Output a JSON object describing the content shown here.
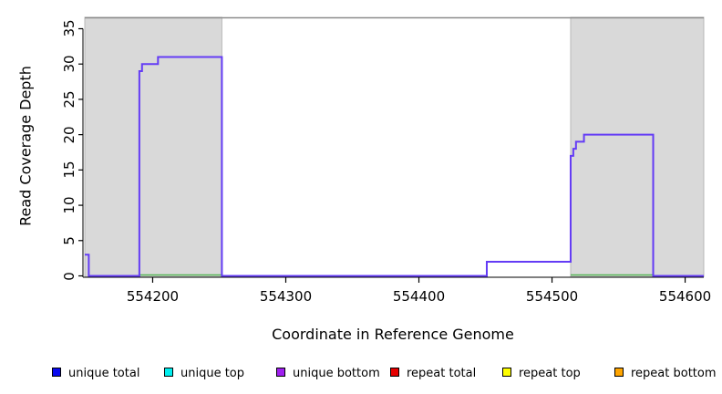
{
  "chart_data": {
    "type": "line",
    "subtype": "step-coverage",
    "title": "",
    "xlabel": "Coordinate in Reference Genome",
    "ylabel": "Read Coverage Depth",
    "xlim": [
      554149,
      554614
    ],
    "ylim": [
      0,
      36.6
    ],
    "x_ticks": [
      "554200",
      "554300",
      "554400",
      "554500",
      "554600"
    ],
    "x_tick_values": [
      554200,
      554300,
      554400,
      554500,
      554600
    ],
    "y_ticks": [
      "0",
      "5",
      "10",
      "15",
      "20",
      "25",
      "30",
      "35"
    ],
    "y_tick_values": [
      0,
      5,
      10,
      15,
      20,
      25,
      30,
      35
    ],
    "grid": "off",
    "coverage_profile": [
      {
        "start": 554149,
        "end": 554152,
        "depth": 3
      },
      {
        "start": 554152,
        "end": 554190,
        "depth": 0
      },
      {
        "start": 554190,
        "end": 554192,
        "depth": 29
      },
      {
        "start": 554192,
        "end": 554204,
        "depth": 30
      },
      {
        "start": 554204,
        "end": 554252,
        "depth": 31
      },
      {
        "start": 554252,
        "end": 554451,
        "depth": 0
      },
      {
        "start": 554451,
        "end": 554514,
        "depth": 2
      },
      {
        "start": 554514,
        "end": 554516,
        "depth": 17
      },
      {
        "start": 554516,
        "end": 554518,
        "depth": 18
      },
      {
        "start": 554518,
        "end": 554524,
        "depth": 19
      },
      {
        "start": 554524,
        "end": 554576,
        "depth": 20
      },
      {
        "start": 554576,
        "end": 554614,
        "depth": 0
      }
    ],
    "repeat_regions": [
      {
        "start": 554149,
        "end": 554252
      },
      {
        "start": 554514,
        "end": 554614
      }
    ],
    "zero_baseline_green_segments": [
      {
        "start": 554190,
        "end": 554252
      },
      {
        "start": 554514,
        "end": 554576
      }
    ],
    "legend_position": "bottom",
    "legend": [
      {
        "label": "unique total",
        "color": "#0a0af0"
      },
      {
        "label": "unique top",
        "color": "#00eeee"
      },
      {
        "label": "unique bottom",
        "color": "#a020f0"
      },
      {
        "label": "repeat total",
        "color": "#e60000"
      },
      {
        "label": "repeat top",
        "color": "#ffff00"
      },
      {
        "label": "repeat bottom",
        "color": "#ffa500"
      }
    ],
    "colors": {
      "coverage_line": "#643cf5",
      "zero_baseline_green": "#55b555",
      "repeat_region_fill": "#d9d9d9",
      "repeat_region_border": "#b8b8b8",
      "plot_top_line": "#8c8c8c",
      "axis": "#000000"
    }
  }
}
